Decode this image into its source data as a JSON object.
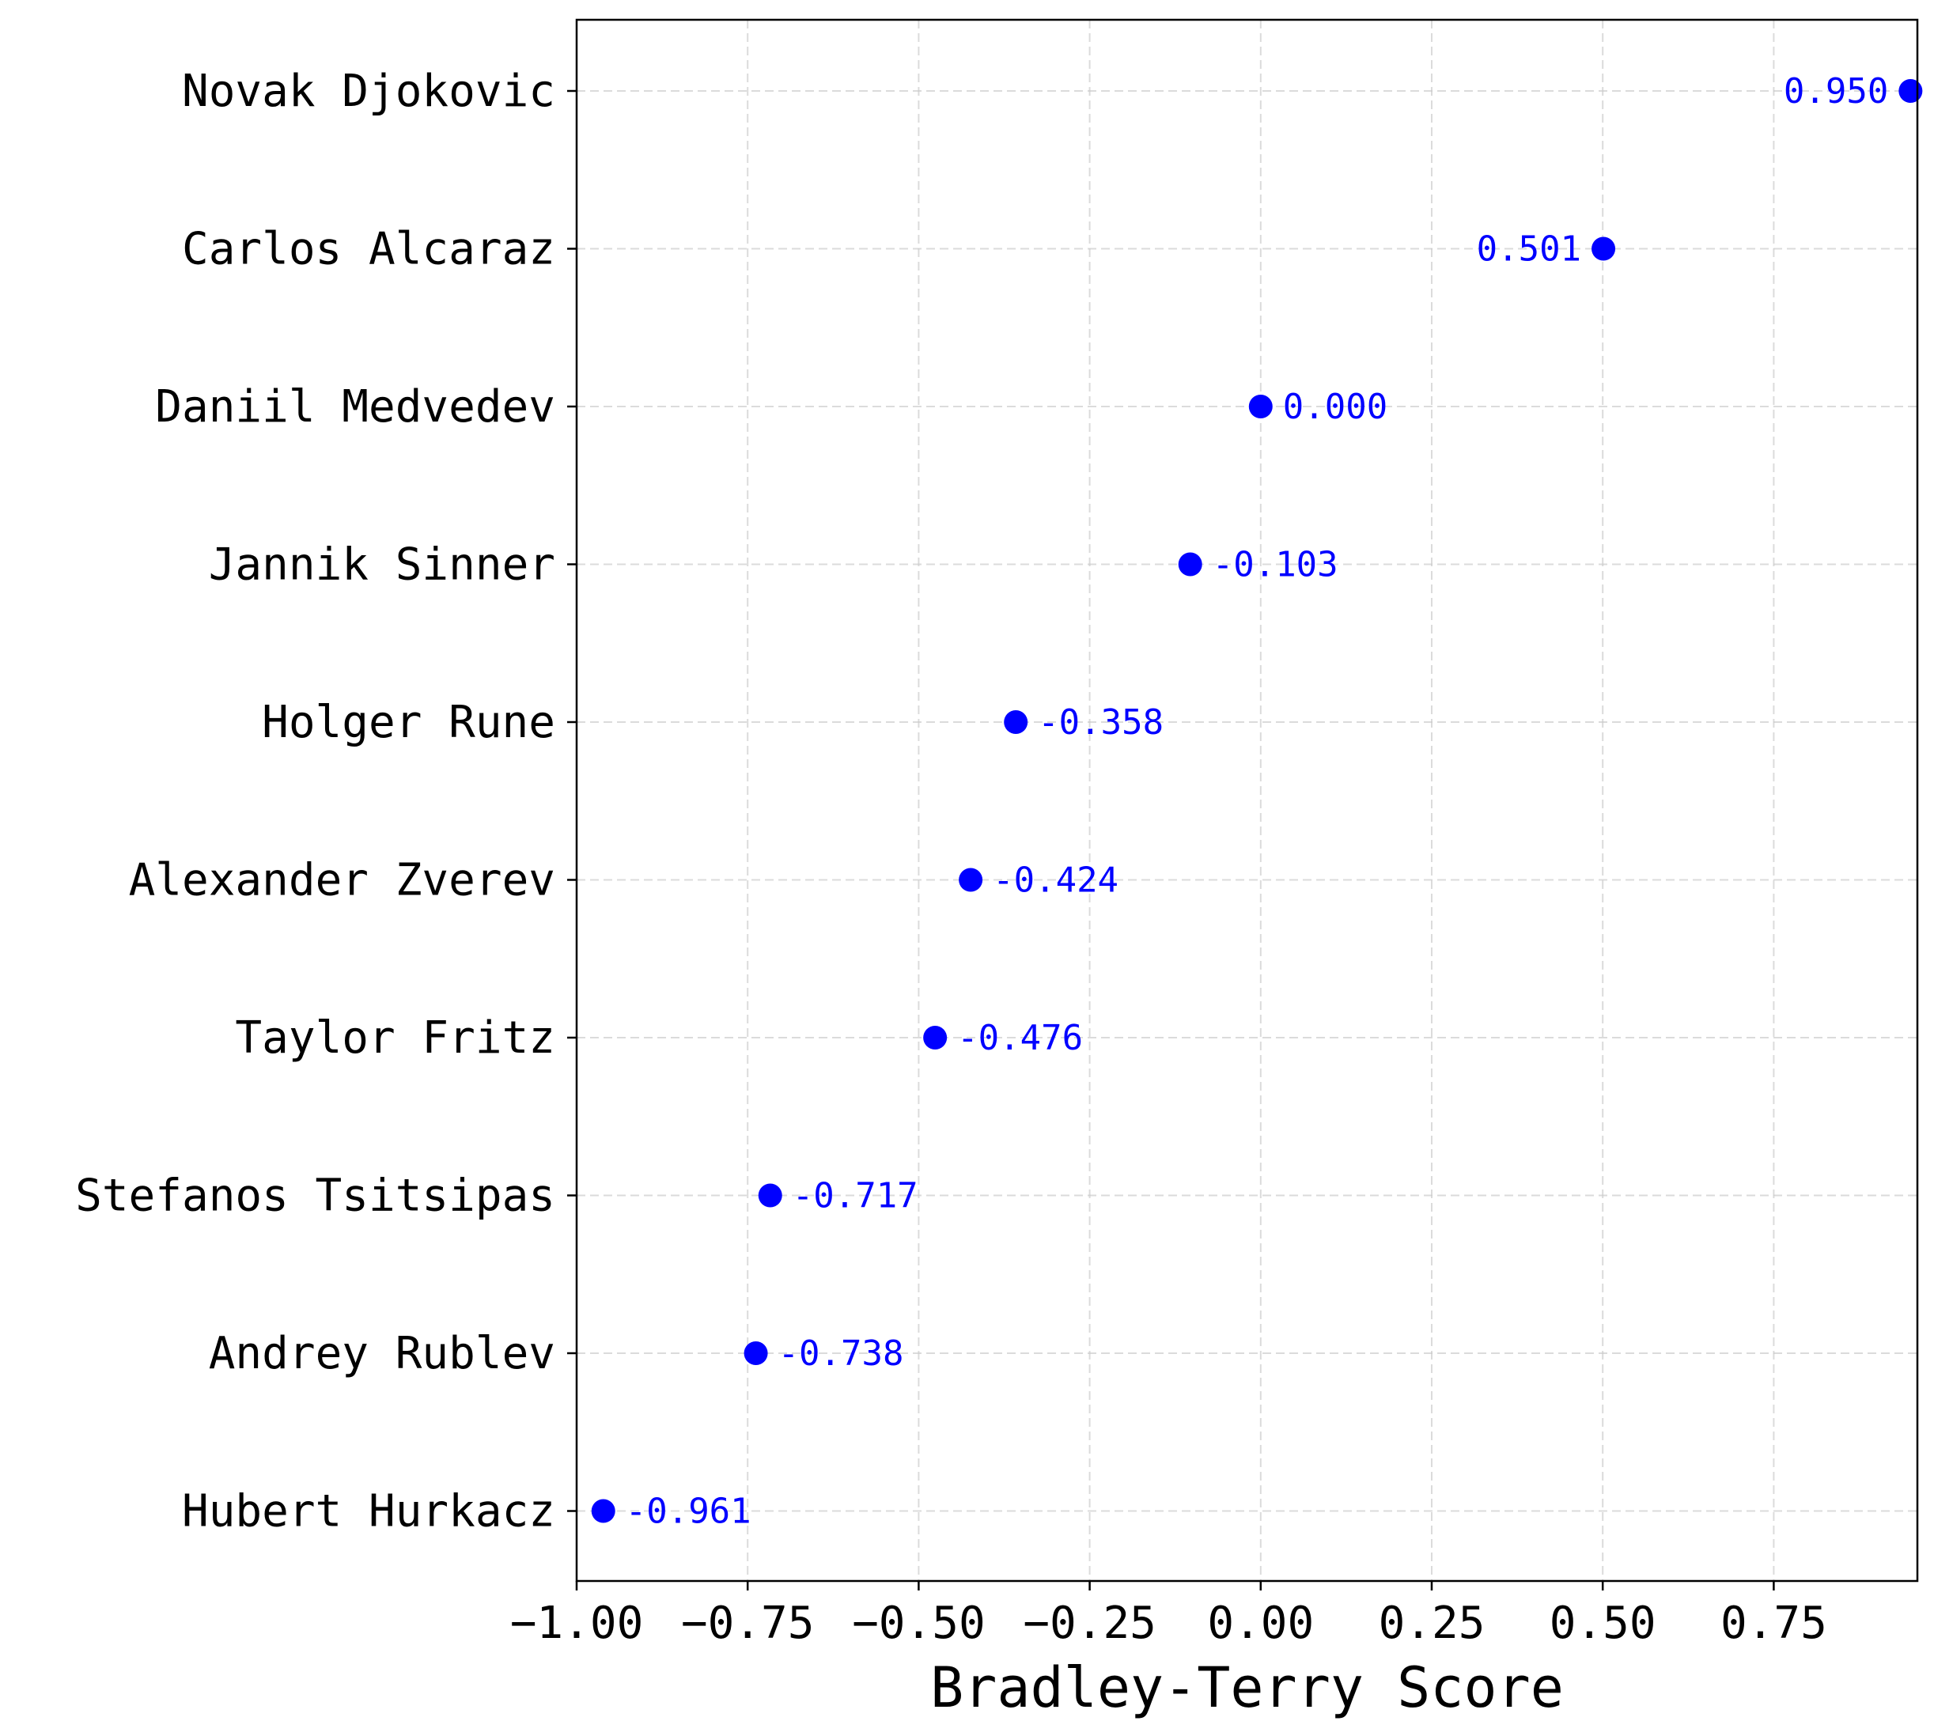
{
  "chart_data": {
    "type": "scatter",
    "orientation": "horizontal",
    "categories": [
      "Novak Djokovic",
      "Carlos Alcaraz",
      "Daniil Medvedev",
      "Jannik Sinner",
      "Holger Rune",
      "Alexander Zverev",
      "Taylor Fritz",
      "Stefanos Tsitsipas",
      "Andrey Rublev",
      "Hubert Hurkacz"
    ],
    "values": [
      0.95,
      0.501,
      0.0,
      -0.103,
      -0.358,
      -0.424,
      -0.476,
      -0.717,
      -0.738,
      -0.961
    ],
    "value_labels": [
      "0.950",
      "0.501",
      "0.000",
      "-0.103",
      "-0.358",
      "-0.424",
      "-0.476",
      "-0.717",
      "-0.738",
      "-0.961"
    ],
    "xlabel": "Bradley-Terry Score",
    "ylabel": "",
    "title": "",
    "xlim": [
      -1.0,
      0.96
    ],
    "xticks": [
      -1.0,
      -0.75,
      -0.5,
      -0.25,
      0.0,
      0.25,
      0.5,
      0.75
    ],
    "xtick_labels": [
      "−1.00",
      "−0.75",
      "−0.50",
      "−0.25",
      "0.00",
      "0.25",
      "0.50",
      "0.75"
    ],
    "grid": true,
    "marker_color": "#0000ff",
    "label_color": "#0000ff"
  }
}
